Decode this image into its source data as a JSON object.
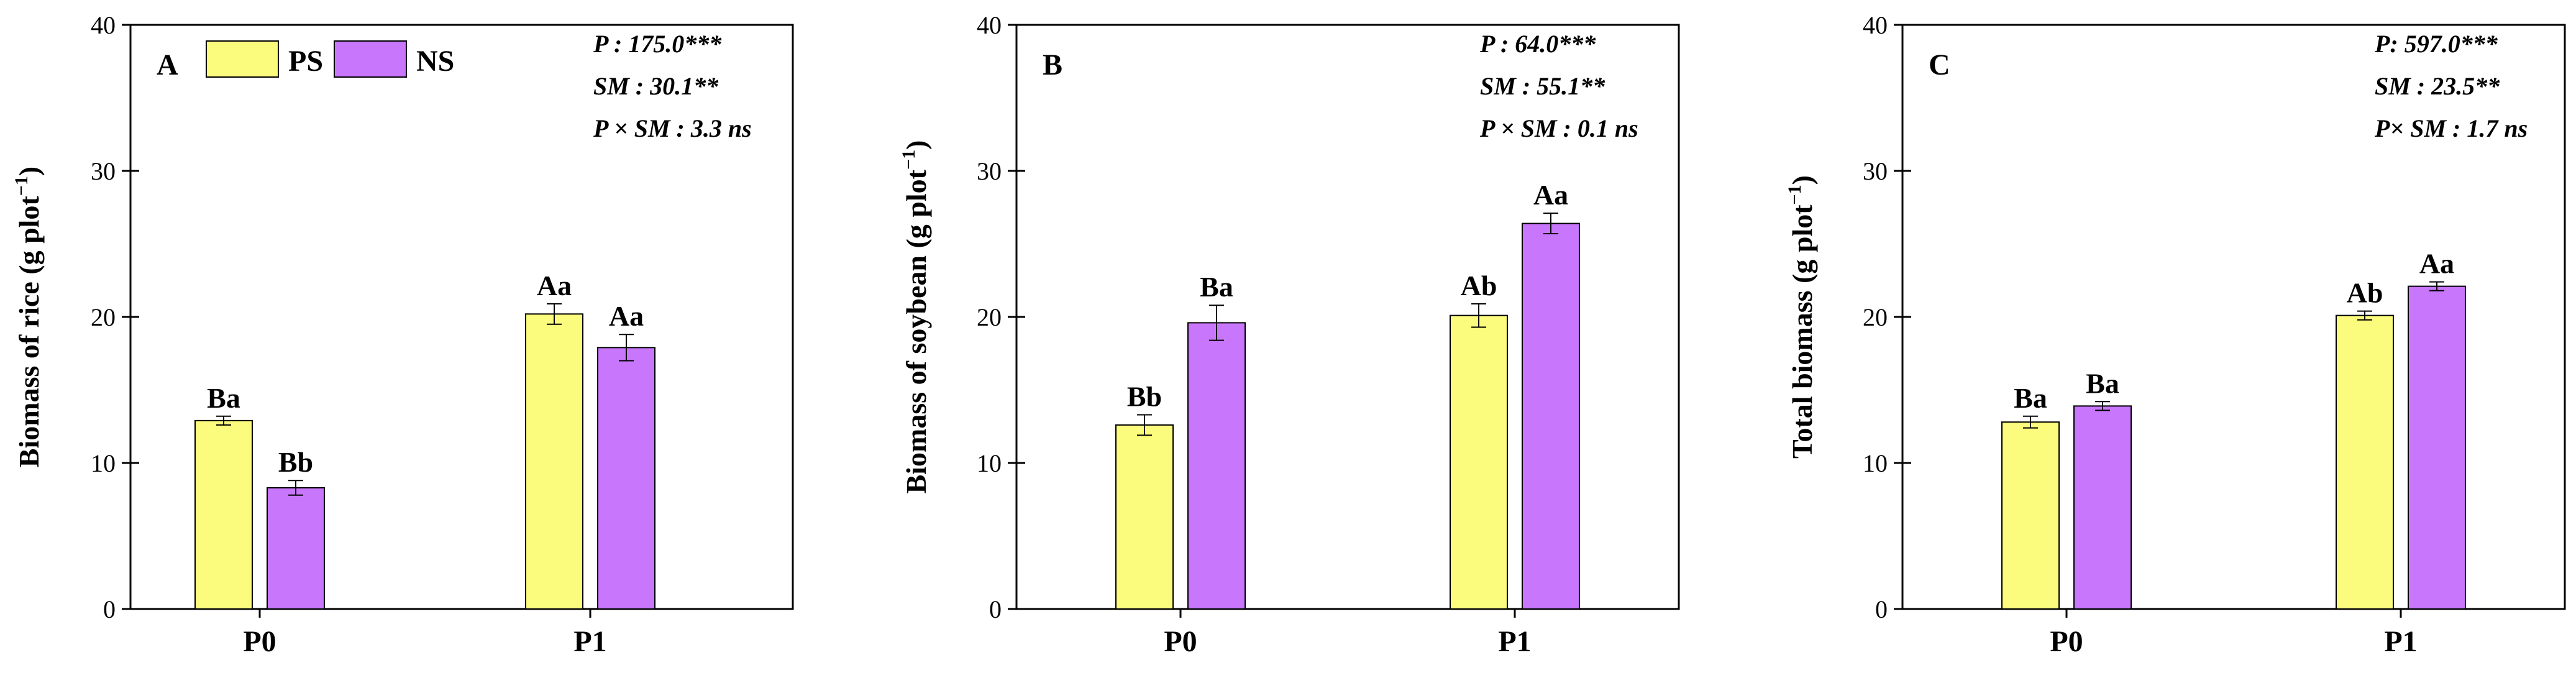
{
  "colors": {
    "PS": "#fbfb7d",
    "NS": "#c876fb"
  },
  "legend": [
    {
      "key": "PS",
      "label": "PS"
    },
    {
      "key": "NS",
      "label": "NS"
    }
  ],
  "chart_data": [
    {
      "type": "bar",
      "panel": "A",
      "ylabel_main": "Biomass of rice (g plot",
      "ylabel_sup": "−1",
      "ylabel_close": ")",
      "ylim": [
        0,
        40
      ],
      "yticks": [
        0,
        10,
        20,
        30,
        40
      ],
      "categories": [
        "P0",
        "P1"
      ],
      "series": [
        {
          "name": "PS",
          "values": [
            12.9,
            20.2
          ],
          "errors": [
            0.3,
            0.7
          ],
          "labels": [
            "Ba",
            "Aa"
          ]
        },
        {
          "name": "NS",
          "values": [
            8.3,
            17.9
          ],
          "errors": [
            0.5,
            0.9
          ],
          "labels": [
            "Bb",
            "Aa"
          ]
        }
      ],
      "stats": [
        "P : 175.0***",
        "SM : 30.1**",
        "P × SM : 3.3 ns"
      ]
    },
    {
      "type": "bar",
      "panel": "B",
      "ylabel_main": "Biomass of soybean (g plot",
      "ylabel_sup": "−1",
      "ylabel_close": ")",
      "ylim": [
        0,
        40
      ],
      "yticks": [
        0,
        10,
        20,
        30,
        40
      ],
      "categories": [
        "P0",
        "P1"
      ],
      "series": [
        {
          "name": "PS",
          "values": [
            12.6,
            20.1
          ],
          "errors": [
            0.7,
            0.8
          ],
          "labels": [
            "Bb",
            "Ab"
          ]
        },
        {
          "name": "NS",
          "values": [
            19.6,
            26.4
          ],
          "errors": [
            1.2,
            0.7
          ],
          "labels": [
            "Ba",
            "Aa"
          ]
        }
      ],
      "stats": [
        "P : 64.0***",
        "SM : 55.1**",
        "P × SM : 0.1 ns"
      ]
    },
    {
      "type": "bar",
      "panel": "C",
      "ylabel_main": "Total biomass (g plot",
      "ylabel_sup": "−1",
      "ylabel_close": ")",
      "ylim": [
        0,
        40
      ],
      "yticks": [
        0,
        10,
        20,
        30,
        40
      ],
      "categories": [
        "P0",
        "P1"
      ],
      "series": [
        {
          "name": "PS",
          "values": [
            12.8,
            20.1
          ],
          "errors": [
            0.4,
            0.3
          ],
          "labels": [
            "Ba",
            "Ab"
          ]
        },
        {
          "name": "NS",
          "values": [
            13.9,
            22.1
          ],
          "errors": [
            0.3,
            0.3
          ],
          "labels": [
            "Ba",
            "Aa"
          ]
        }
      ],
      "stats": [
        "P: 597.0***",
        "SM : 23.5**",
        "P× SM : 1.7 ns"
      ]
    }
  ]
}
